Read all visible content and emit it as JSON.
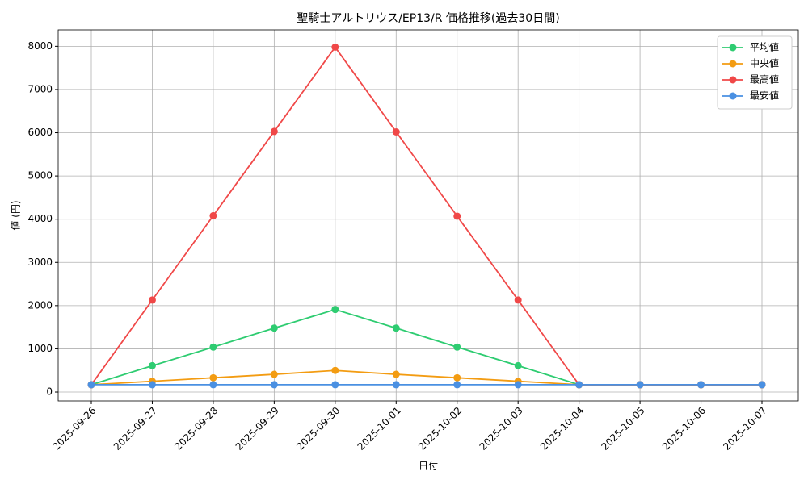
{
  "chart_data": {
    "type": "line",
    "title": "聖騎士アルトリウス/EP13/R 価格推移(過去30日間)",
    "x_label": "日付",
    "y_label": "値 (円)",
    "categories": [
      "2025-09-26",
      "2025-09-27",
      "2025-09-28",
      "2025-09-29",
      "2025-09-30",
      "2025-10-01",
      "2025-10-02",
      "2025-10-03",
      "2025-10-04",
      "2025-10-05",
      "2025-10-06",
      "2025-10-07"
    ],
    "series": [
      {
        "name": "平均値",
        "color": "#2ecc71",
        "values": [
          170,
          610,
          1040,
          1480,
          1910,
          1480,
          1040,
          610,
          170,
          170,
          170,
          170
        ]
      },
      {
        "name": "中央値",
        "color": "#f39c12",
        "values": [
          170,
          250,
          330,
          410,
          500,
          410,
          330,
          250,
          170,
          170,
          170,
          170
        ]
      },
      {
        "name": "最高値",
        "color": "#f04848",
        "values": [
          170,
          2130,
          4080,
          6030,
          7980,
          6020,
          4070,
          2130,
          170,
          170,
          170,
          170
        ]
      },
      {
        "name": "最安値",
        "color": "#4a90e2",
        "values": [
          170,
          170,
          170,
          170,
          170,
          170,
          170,
          170,
          170,
          170,
          170,
          170
        ]
      }
    ],
    "ylim": [
      -205,
      8380
    ],
    "yticks": [
      0,
      1000,
      2000,
      3000,
      4000,
      5000,
      6000,
      7000,
      8000
    ],
    "grid": true,
    "legend": "upper right"
  }
}
